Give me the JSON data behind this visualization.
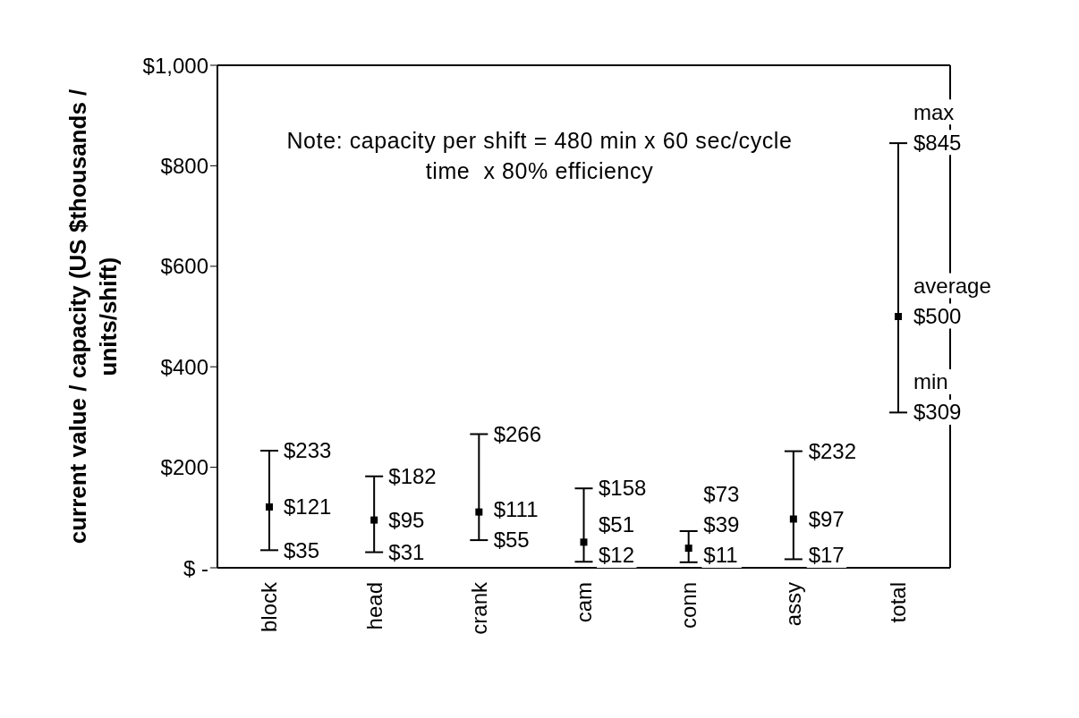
{
  "chart_data": {
    "type": "scatter",
    "ylabel": "current value / capacity (US $thousands / units/shift)",
    "categories": [
      "block",
      "head",
      "crank",
      "cam",
      "conn",
      "assy",
      "total"
    ],
    "values": [
      121,
      95,
      111,
      51,
      39,
      97,
      500
    ],
    "errors": [
      [
        35,
        233
      ],
      [
        31,
        182
      ],
      [
        55,
        266
      ],
      [
        12,
        158
      ],
      [
        11,
        73
      ],
      [
        17,
        232
      ],
      [
        309,
        845
      ]
    ],
    "value_labels": [
      "$121",
      "$95",
      "$111",
      "$51",
      "$39",
      "$97",
      "$500"
    ],
    "color": "#000000",
    "marker": "square",
    "grid": false,
    "ylim": [
      0,
      1000
    ],
    "yticks": [
      {
        "value": 0,
        "label": "$ -"
      },
      {
        "value": 200,
        "label": "$200"
      },
      {
        "value": 400,
        "label": "$400"
      },
      {
        "value": 600,
        "label": "$600"
      },
      {
        "value": 800,
        "label": "$800"
      },
      {
        "value": 1000,
        "label": "$1,000"
      }
    ],
    "annotations": [
      "Note: capacity per shift = 480 min x 60 sec/cycle time  x 80% efficiency",
      {
        "text": "$233",
        "x": "block",
        "y": 233
      },
      {
        "text": "$35",
        "x": "block",
        "y": 35
      },
      {
        "text": "$182",
        "x": "head",
        "y": 182
      },
      {
        "text": "$31",
        "x": "head",
        "y": 31
      },
      {
        "text": "$266",
        "x": "crank",
        "y": 266
      },
      {
        "text": "$55",
        "x": "crank",
        "y": 55
      },
      {
        "text": "$158",
        "x": "cam",
        "y": 158
      },
      {
        "text": "$12",
        "x": "cam",
        "y": 12
      },
      {
        "text": "$73",
        "x": "conn",
        "y": 73
      },
      {
        "text": "$11",
        "x": "conn",
        "y": 11
      },
      {
        "text": "$232",
        "x": "assy",
        "y": 232
      },
      {
        "text": "$17",
        "x": "assy",
        "y": 17
      },
      {
        "text": "$845",
        "x": "total",
        "y": 845
      },
      {
        "text": "max",
        "x": "total",
        "y": 845
      },
      {
        "text": "average",
        "x": "total",
        "y": 500
      },
      {
        "text": "$309",
        "x": "total",
        "y": 309
      },
      {
        "text": "min",
        "x": "total",
        "y": 309
      }
    ]
  }
}
